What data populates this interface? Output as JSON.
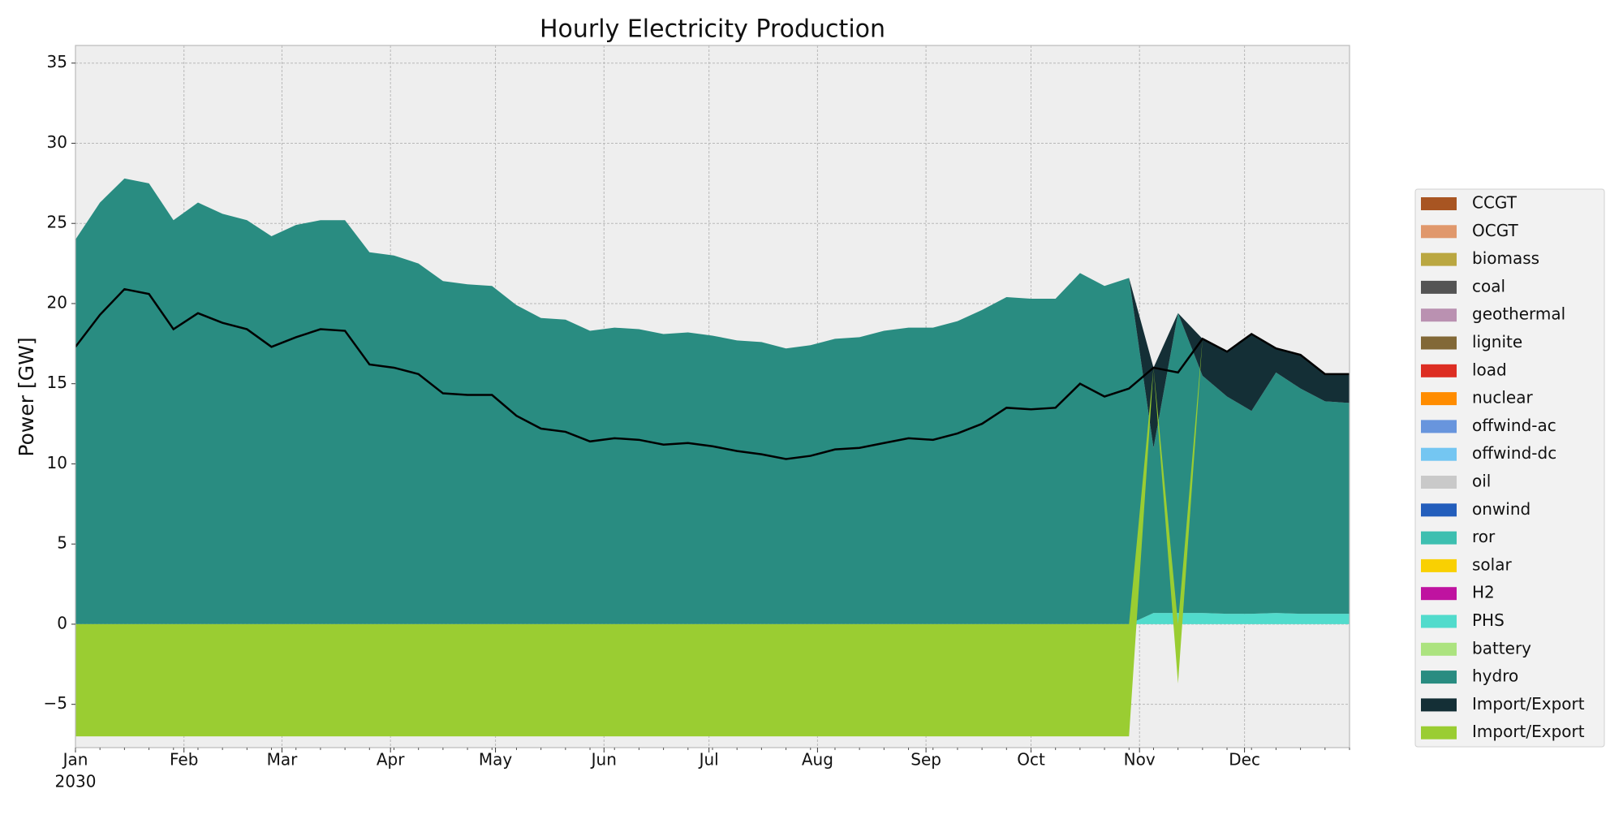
{
  "chart_data": {
    "type": "stacked_area",
    "title": "Hourly Electricity Production",
    "y_label": "Power [GW]",
    "x_sublabel": "2030",
    "x": [
      0,
      7,
      14,
      21,
      28,
      35,
      42,
      49,
      56,
      63,
      70,
      77,
      84,
      91,
      98,
      105,
      112,
      119,
      126,
      133,
      140,
      147,
      154,
      161,
      168,
      175,
      182,
      189,
      196,
      203,
      210,
      217,
      224,
      231,
      238,
      245,
      252,
      259,
      266,
      273,
      280,
      287,
      294,
      301,
      308,
      315,
      322,
      329,
      336,
      343,
      350,
      357,
      364
    ],
    "xlim": [
      0,
      364
    ],
    "xticks": [
      {
        "value": 0,
        "label": "Jan"
      },
      {
        "value": 31,
        "label": "Feb"
      },
      {
        "value": 59,
        "label": "Mar"
      },
      {
        "value": 90,
        "label": "Apr"
      },
      {
        "value": 120,
        "label": "May"
      },
      {
        "value": 151,
        "label": "Jun"
      },
      {
        "value": 181,
        "label": "Jul"
      },
      {
        "value": 212,
        "label": "Aug"
      },
      {
        "value": 243,
        "label": "Sep"
      },
      {
        "value": 273,
        "label": "Oct"
      },
      {
        "value": 304,
        "label": "Nov"
      },
      {
        "value": 334,
        "label": "Dec"
      }
    ],
    "ylim": [
      -7.7,
      36.1
    ],
    "yticks": [
      {
        "value": -5,
        "label": "−5"
      },
      0,
      5,
      10,
      15,
      20,
      25,
      30,
      35
    ],
    "grid": true,
    "legend_position": "right",
    "series": [
      {
        "color": "#51dbcc",
        "values": [
          0,
          0,
          0,
          0,
          0,
          0,
          0,
          0,
          0,
          0,
          0,
          0,
          0,
          0,
          0,
          0,
          0,
          0,
          0,
          0,
          0,
          0,
          0,
          0,
          0,
          0,
          0,
          0,
          0,
          0,
          0,
          0,
          0,
          0,
          0,
          0,
          0,
          0,
          0,
          0,
          0,
          0,
          0,
          0,
          0.7,
          0.7,
          0.7,
          0.65,
          0.65,
          0.7,
          0.65,
          0.65,
          0.65
        ]
      },
      {
        "color": "#298c81",
        "values": [
          24.0,
          26.3,
          27.8,
          27.5,
          25.2,
          26.3,
          25.6,
          25.2,
          24.2,
          24.9,
          25.2,
          25.2,
          23.2,
          23.0,
          22.5,
          21.4,
          21.2,
          21.1,
          19.9,
          19.1,
          19.0,
          18.3,
          18.5,
          18.4,
          18.1,
          18.2,
          18.0,
          17.7,
          17.6,
          17.2,
          17.4,
          17.8,
          17.9,
          18.3,
          18.5,
          18.5,
          18.9,
          19.6,
          20.4,
          20.3,
          20.3,
          21.9,
          21.1,
          21.6,
          10.3,
          18.7,
          14.8,
          13.55,
          12.65,
          15.0,
          14.05,
          13.25,
          13.15
        ]
      },
      {
        "color": "#142f36",
        "values": [
          0,
          0,
          0,
          0,
          0,
          0,
          0,
          0,
          0,
          0,
          0,
          0,
          0,
          0,
          0,
          0,
          0,
          0,
          0,
          0,
          0,
          0,
          0,
          0,
          0,
          0,
          0,
          0,
          0,
          0,
          0,
          0,
          0,
          0,
          0,
          0,
          0,
          0,
          0,
          0,
          0,
          0,
          0,
          0,
          5.0,
          0,
          2.3,
          2.8,
          4.8,
          1.5,
          2.1,
          1.7,
          1.8
        ]
      },
      {
        "color": "#9acd32",
        "values": [
          -7,
          -7,
          -7,
          -7,
          -7,
          -7,
          -7,
          -7,
          -7,
          -7,
          -7,
          -7,
          -7,
          -7,
          -7,
          -7,
          -7,
          -7,
          -7,
          -7,
          -7,
          -7,
          -7,
          -7,
          -7,
          -7,
          -7,
          -7,
          -7,
          -7,
          -7,
          -7,
          -7,
          -7,
          -7,
          -7,
          -7,
          -7,
          -7,
          -7,
          -7,
          -7,
          -7,
          -7,
          0,
          -3.7,
          0,
          0,
          0,
          0,
          0,
          0,
          0
        ]
      }
    ],
    "lines": [
      {
        "color": "#000000",
        "values": [
          17.3,
          19.3,
          20.9,
          20.6,
          18.4,
          19.4,
          18.8,
          18.4,
          17.3,
          17.9,
          18.4,
          18.3,
          16.2,
          16.0,
          15.6,
          14.4,
          14.3,
          14.3,
          13.0,
          12.2,
          12.0,
          11.4,
          11.6,
          11.5,
          11.2,
          11.3,
          11.1,
          10.8,
          10.6,
          10.3,
          10.5,
          10.9,
          11.0,
          11.3,
          11.6,
          11.5,
          11.9,
          12.5,
          13.5,
          13.4,
          13.5,
          15.0,
          14.2,
          14.7,
          16.0,
          15.7,
          17.8,
          17.0,
          18.1,
          17.2,
          16.8,
          15.6,
          15.6
        ]
      }
    ],
    "legend": [
      {
        "name": "CCGT",
        "color": "#a85522"
      },
      {
        "name": "OCGT",
        "color": "#e0986c"
      },
      {
        "name": "biomass",
        "color": "#baa741"
      },
      {
        "name": "coal",
        "color": "#545454"
      },
      {
        "name": "geothermal",
        "color": "#ba91b1"
      },
      {
        "name": "lignite",
        "color": "#826837"
      },
      {
        "name": "load",
        "color": "#dd2e23"
      },
      {
        "name": "nuclear",
        "color": "#ff8c00"
      },
      {
        "name": "offwind-ac",
        "color": "#6895dd"
      },
      {
        "name": "offwind-dc",
        "color": "#74c6f2"
      },
      {
        "name": "oil",
        "color": "#c9c9c9"
      },
      {
        "name": "onwind",
        "color": "#235ebc"
      },
      {
        "name": "ror",
        "color": "#3dbfb0"
      },
      {
        "name": "solar",
        "color": "#f9d002"
      },
      {
        "name": "H2",
        "color": "#bf13a0"
      },
      {
        "name": "PHS",
        "color": "#51dbcc"
      },
      {
        "name": "battery",
        "color": "#ace37f"
      },
      {
        "name": "hydro",
        "color": "#298c81"
      },
      {
        "name": "Import/Export",
        "color": "#142f36"
      },
      {
        "name": "Import/Export",
        "color": "#9acd32"
      }
    ]
  }
}
